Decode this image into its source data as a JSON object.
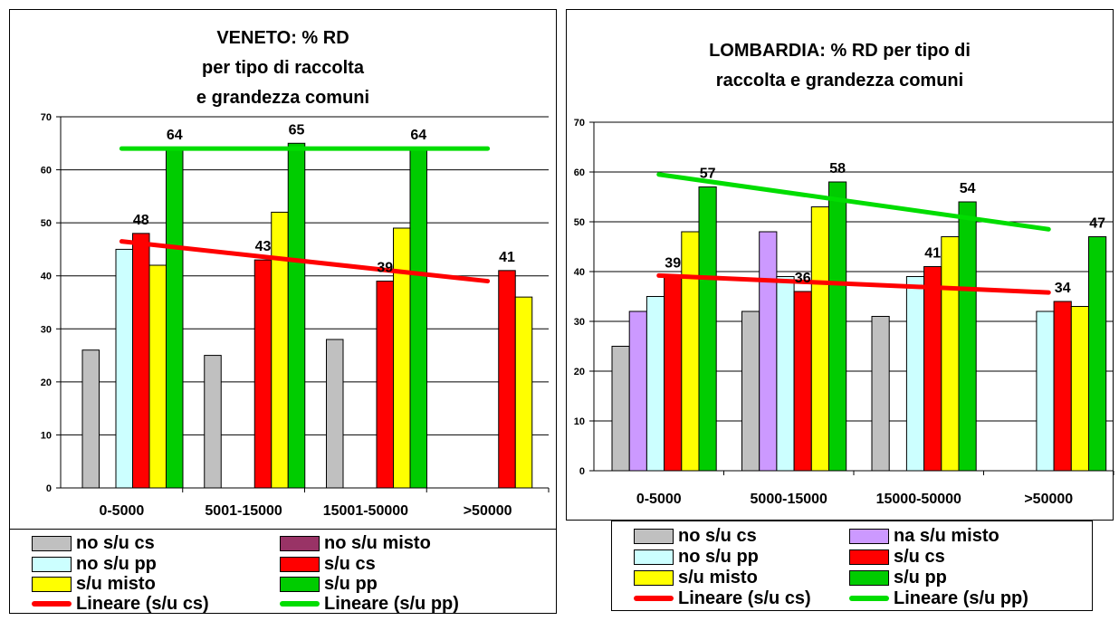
{
  "chart_data": [
    {
      "type": "bar",
      "title_lines": [
        "VENETO: % RD",
        "per tipo di raccolta",
        "e grandezza comuni"
      ],
      "categories": [
        "0-5000",
        "5001-15000",
        "15001-50000",
        ">50000"
      ],
      "ylim": [
        0,
        70
      ],
      "yticks": [
        "0",
        "10",
        "20",
        "30",
        "40",
        "50",
        "60",
        "70"
      ],
      "grid": true,
      "legend_position": "bottom",
      "series": [
        {
          "name": "no s/u cs",
          "color": "#C0C0C0",
          "values": [
            26,
            25,
            28,
            null
          ]
        },
        {
          "name": "no s/u misto",
          "color": "#993366",
          "values": [
            null,
            null,
            null,
            null
          ]
        },
        {
          "name": "no s/u pp",
          "color": "#CCFFFF",
          "values": [
            45,
            null,
            null,
            null
          ]
        },
        {
          "name": "s/u cs",
          "color": "#FF0000",
          "values": [
            48,
            43,
            39,
            41
          ]
        },
        {
          "name": "s/u misto",
          "color": "#FFFF00",
          "values": [
            42,
            52,
            49,
            36
          ]
        },
        {
          "name": "s/u pp",
          "color": "#00CC00",
          "values": [
            64,
            65,
            64,
            null
          ]
        }
      ],
      "data_labels": [
        {
          "series": "s/u cs",
          "values": [
            "48",
            "43",
            "39",
            "41"
          ]
        },
        {
          "series": "s/u pp",
          "values": [
            "64",
            "65",
            "64",
            ""
          ]
        }
      ],
      "trendlines": [
        {
          "name": "Lineare (s/u cs)",
          "color": "#FF0000",
          "from": 46.5,
          "to": 39
        },
        {
          "name": "Lineare (s/u pp)",
          "color": "#00DD00",
          "from": 64,
          "to": 64
        }
      ],
      "legend": [
        {
          "label": "no s/u cs",
          "kind": "box",
          "color": "#C0C0C0"
        },
        {
          "label": "no s/u misto",
          "kind": "box",
          "color": "#993366"
        },
        {
          "label": "no s/u pp",
          "kind": "box",
          "color": "#CCFFFF"
        },
        {
          "label": "s/u cs",
          "kind": "box",
          "color": "#FF0000"
        },
        {
          "label": "s/u misto",
          "kind": "box",
          "color": "#FFFF00"
        },
        {
          "label": "s/u pp",
          "kind": "box",
          "color": "#00CC00"
        },
        {
          "label": "Lineare (s/u cs)",
          "kind": "line",
          "color": "#FF0000"
        },
        {
          "label": "Lineare (s/u pp)",
          "kind": "line",
          "color": "#00DD00"
        }
      ]
    },
    {
      "type": "bar",
      "title_lines": [
        "LOMBARDIA: % RD per tipo di",
        "raccolta e grandezza comuni"
      ],
      "categories": [
        "0-5000",
        "5000-15000",
        "15000-50000",
        ">50000"
      ],
      "ylim": [
        0,
        70
      ],
      "yticks": [
        "0",
        "10",
        "20",
        "30",
        "40",
        "50",
        "60",
        "70"
      ],
      "grid": true,
      "legend_position": "bottom",
      "series": [
        {
          "name": "no s/u cs",
          "color": "#C0C0C0",
          "values": [
            25,
            32,
            31,
            null
          ]
        },
        {
          "name": "na s/u misto",
          "color": "#CC99FF",
          "values": [
            32,
            48,
            null,
            null
          ]
        },
        {
          "name": "no s/u pp",
          "color": "#CCFFFF",
          "values": [
            35,
            39,
            39,
            32
          ]
        },
        {
          "name": "s/u cs",
          "color": "#FF0000",
          "values": [
            39,
            36,
            41,
            34
          ]
        },
        {
          "name": "s/u misto",
          "color": "#FFFF00",
          "values": [
            48,
            53,
            47,
            33
          ]
        },
        {
          "name": "s/u pp",
          "color": "#00CC00",
          "values": [
            57,
            58,
            54,
            47
          ]
        }
      ],
      "data_labels": [
        {
          "series": "s/u cs",
          "values": [
            "39",
            "36",
            "41",
            "34"
          ]
        },
        {
          "series": "s/u pp",
          "values": [
            "57",
            "58",
            "54",
            "47"
          ]
        }
      ],
      "trendlines": [
        {
          "name": "Lineare (s/u cs)",
          "color": "#FF0000",
          "from": 39.2,
          "to": 35.8
        },
        {
          "name": "Lineare (s/u pp)",
          "color": "#00DD00",
          "from": 59.5,
          "to": 48.5
        }
      ],
      "legend": [
        {
          "label": "no s/u cs",
          "kind": "box",
          "color": "#C0C0C0"
        },
        {
          "label": "na s/u misto",
          "kind": "box",
          "color": "#CC99FF"
        },
        {
          "label": "no s/u pp",
          "kind": "box",
          "color": "#CCFFFF"
        },
        {
          "label": "s/u cs",
          "kind": "box",
          "color": "#FF0000"
        },
        {
          "label": "s/u misto",
          "kind": "box",
          "color": "#FFFF00"
        },
        {
          "label": "s/u pp",
          "kind": "box",
          "color": "#00CC00"
        },
        {
          "label": "Lineare (s/u cs)",
          "kind": "line",
          "color": "#FF0000"
        },
        {
          "label": "Lineare (s/u pp)",
          "kind": "line",
          "color": "#00DD00"
        }
      ]
    }
  ]
}
